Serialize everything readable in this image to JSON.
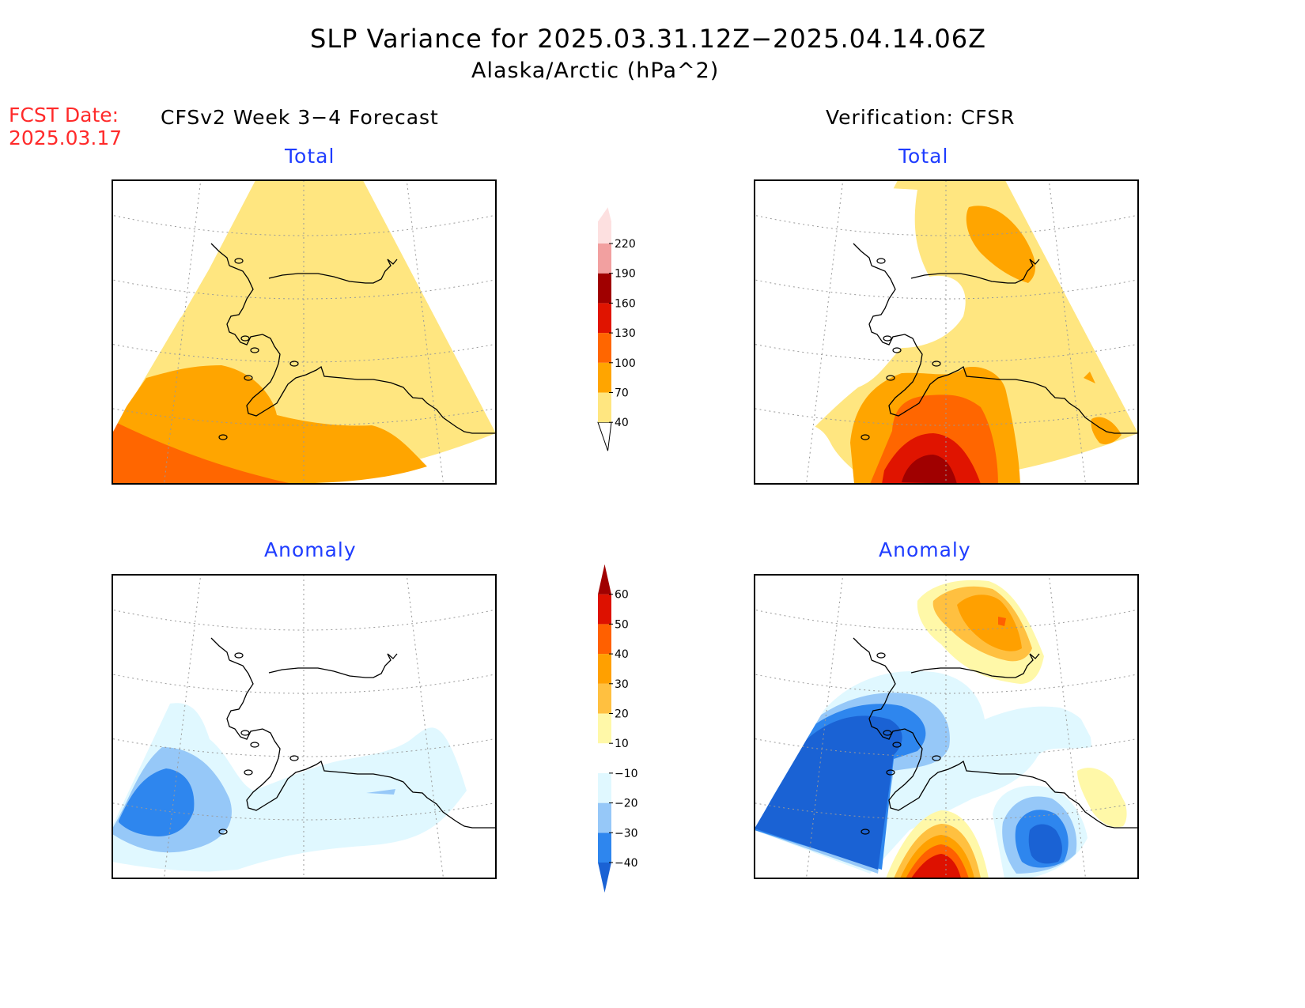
{
  "header": {
    "title": "SLP Variance for 2025.03.31.12Z−2025.04.14.06Z",
    "subtitle": "Alaska/Arctic (hPa^2)",
    "fcst_label": "FCST Date:",
    "fcst_date": "2025.03.17"
  },
  "columns": {
    "left": "CFSv2 Week 3−4 Forecast",
    "right": "Verification: CFSR"
  },
  "panels": {
    "forecast_total": "Total",
    "verification_total": "Total",
    "forecast_anomaly": "Anomaly",
    "verification_anomaly": "Anomaly"
  },
  "colorbars": {
    "total": {
      "labels": [
        "40",
        "70",
        "100",
        "130",
        "160",
        "190",
        "220"
      ],
      "colors": [
        "#ffe680",
        "#ffa500",
        "#ff6600",
        "#e01400",
        "#a00000",
        "#f2a0a0",
        "#fde0e0"
      ]
    },
    "anomaly": {
      "labels": [
        "−40",
        "−30",
        "−20",
        "−10",
        "10",
        "20",
        "30",
        "40",
        "50",
        "60"
      ],
      "colors": [
        "#1a62d4",
        "#2e86ee",
        "#96c8f8",
        "#e0f8ff",
        "#ffffff",
        "#fff8a8",
        "#ffc040",
        "#ffa000",
        "#ff6000",
        "#dd1100",
        "#a00000"
      ]
    }
  },
  "colors": {
    "title_text": "#000000",
    "fcst_text": "#ff2a2a",
    "panel_title_text": "#1e3cff"
  }
}
